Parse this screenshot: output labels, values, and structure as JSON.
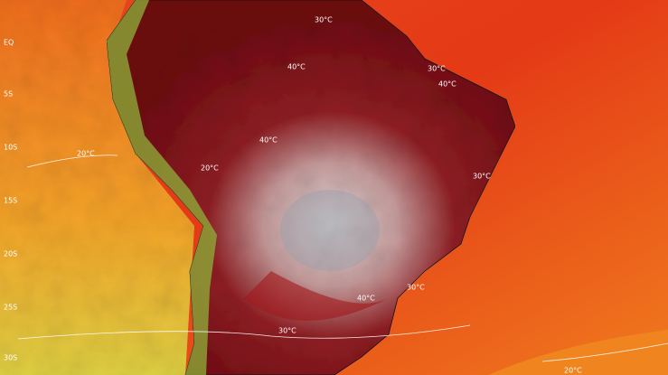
{
  "map": {
    "lat_labels": [
      "EQ",
      "5S",
      "10S",
      "15S",
      "20S",
      "25S",
      "30S"
    ],
    "contour_labels": [
      "30°C",
      "40°C",
      "30°C",
      "40°C",
      "40°C",
      "20°C",
      "20°C",
      "30°C",
      "30°C",
      "40°C",
      "30°C",
      "20°C"
    ]
  }
}
